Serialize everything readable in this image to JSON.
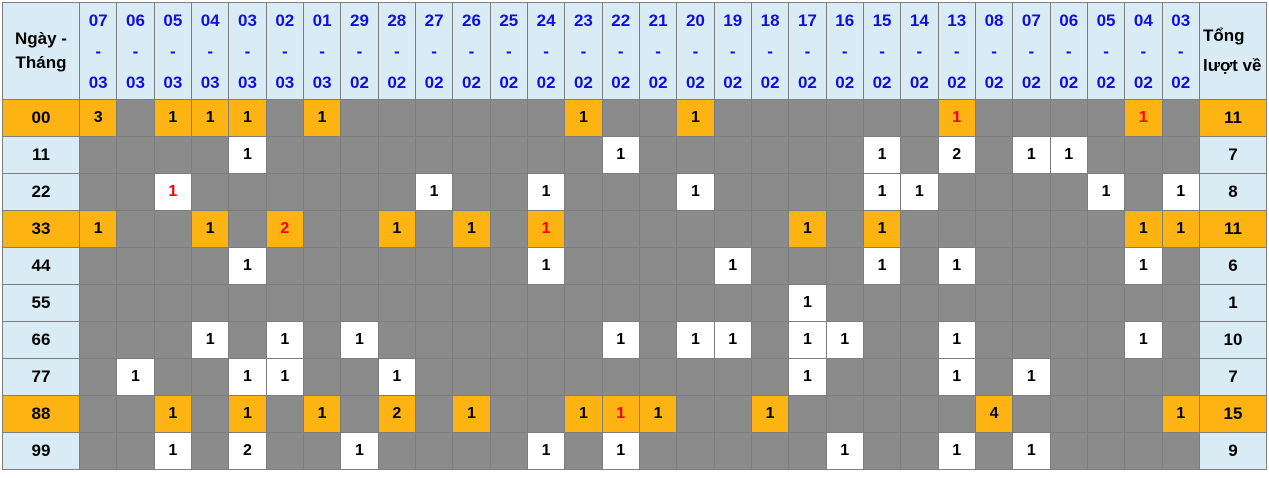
{
  "chart_data": {
    "type": "table",
    "corner_header": "Ngày - Tháng",
    "total_header": "Tổng lượt về",
    "columns": [
      "07-03",
      "06-03",
      "05-03",
      "04-03",
      "03-03",
      "02-03",
      "01-03",
      "29-02",
      "28-02",
      "27-02",
      "26-02",
      "25-02",
      "24-02",
      "23-02",
      "22-02",
      "21-02",
      "20-02",
      "19-02",
      "18-02",
      "17-02",
      "16-02",
      "15-02",
      "14-02",
      "13-02",
      "08-02",
      "07-02",
      "06-02",
      "05-02",
      "04-02",
      "03-02"
    ],
    "rows": [
      {
        "label": "00",
        "highlight": true,
        "total": 11,
        "cells": [
          {
            "v": 3
          },
          null,
          {
            "v": 1
          },
          {
            "v": 1
          },
          {
            "v": 1
          },
          null,
          {
            "v": 1
          },
          null,
          null,
          null,
          null,
          null,
          null,
          {
            "v": 1
          },
          null,
          null,
          {
            "v": 1
          },
          null,
          null,
          null,
          null,
          null,
          null,
          {
            "v": 1,
            "red": true
          },
          null,
          null,
          null,
          null,
          {
            "v": 1,
            "red": true
          },
          null
        ]
      },
      {
        "label": "11",
        "highlight": false,
        "total": 7,
        "cells": [
          null,
          null,
          null,
          null,
          {
            "v": 1
          },
          null,
          null,
          null,
          null,
          null,
          null,
          null,
          null,
          null,
          {
            "v": 1
          },
          null,
          null,
          null,
          null,
          null,
          null,
          {
            "v": 1
          },
          null,
          {
            "v": 2
          },
          null,
          {
            "v": 1
          },
          {
            "v": 1
          },
          null,
          null,
          null
        ]
      },
      {
        "label": "22",
        "highlight": false,
        "total": 8,
        "cells": [
          null,
          null,
          {
            "v": 1,
            "red": true
          },
          null,
          null,
          null,
          null,
          null,
          null,
          {
            "v": 1
          },
          null,
          null,
          {
            "v": 1
          },
          null,
          null,
          null,
          {
            "v": 1
          },
          null,
          null,
          null,
          null,
          {
            "v": 1
          },
          {
            "v": 1
          },
          null,
          null,
          null,
          null,
          {
            "v": 1
          },
          null,
          {
            "v": 1
          }
        ]
      },
      {
        "label": "33",
        "highlight": true,
        "total": 11,
        "cells": [
          {
            "v": 1
          },
          null,
          null,
          {
            "v": 1
          },
          null,
          {
            "v": 2,
            "red": true
          },
          null,
          null,
          {
            "v": 1
          },
          null,
          {
            "v": 1
          },
          null,
          {
            "v": 1,
            "red": true
          },
          null,
          null,
          null,
          null,
          null,
          null,
          {
            "v": 1
          },
          null,
          {
            "v": 1
          },
          null,
          null,
          null,
          null,
          null,
          null,
          {
            "v": 1
          },
          {
            "v": 1
          }
        ]
      },
      {
        "label": "44",
        "highlight": false,
        "total": 6,
        "cells": [
          null,
          null,
          null,
          null,
          {
            "v": 1
          },
          null,
          null,
          null,
          null,
          null,
          null,
          null,
          {
            "v": 1
          },
          null,
          null,
          null,
          null,
          {
            "v": 1
          },
          null,
          null,
          null,
          {
            "v": 1
          },
          null,
          {
            "v": 1
          },
          null,
          null,
          null,
          null,
          {
            "v": 1
          },
          null
        ]
      },
      {
        "label": "55",
        "highlight": false,
        "total": 1,
        "cells": [
          null,
          null,
          null,
          null,
          null,
          null,
          null,
          null,
          null,
          null,
          null,
          null,
          null,
          null,
          null,
          null,
          null,
          null,
          null,
          {
            "v": 1
          },
          null,
          null,
          null,
          null,
          null,
          null,
          null,
          null,
          null,
          null
        ]
      },
      {
        "label": "66",
        "highlight": false,
        "total": 10,
        "cells": [
          null,
          null,
          null,
          {
            "v": 1
          },
          null,
          {
            "v": 1
          },
          null,
          {
            "v": 1
          },
          null,
          null,
          null,
          null,
          null,
          null,
          {
            "v": 1
          },
          null,
          {
            "v": 1
          },
          {
            "v": 1
          },
          null,
          {
            "v": 1
          },
          {
            "v": 1
          },
          null,
          null,
          {
            "v": 1
          },
          null,
          null,
          null,
          null,
          {
            "v": 1
          },
          null
        ]
      },
      {
        "label": "77",
        "highlight": false,
        "total": 7,
        "cells": [
          null,
          {
            "v": 1
          },
          null,
          null,
          {
            "v": 1
          },
          {
            "v": 1
          },
          null,
          null,
          {
            "v": 1
          },
          null,
          null,
          null,
          null,
          null,
          null,
          null,
          null,
          null,
          null,
          {
            "v": 1
          },
          null,
          null,
          null,
          {
            "v": 1
          },
          null,
          {
            "v": 1
          },
          null,
          null,
          null,
          null
        ]
      },
      {
        "label": "88",
        "highlight": true,
        "total": 15,
        "cells": [
          null,
          null,
          {
            "v": 1
          },
          null,
          {
            "v": 1
          },
          null,
          {
            "v": 1
          },
          null,
          {
            "v": 2
          },
          null,
          {
            "v": 1
          },
          null,
          null,
          {
            "v": 1
          },
          {
            "v": 1,
            "red": true
          },
          {
            "v": 1
          },
          null,
          null,
          {
            "v": 1
          },
          null,
          null,
          null,
          null,
          null,
          {
            "v": 4
          },
          null,
          null,
          null,
          null,
          {
            "v": 1
          }
        ]
      },
      {
        "label": "99",
        "highlight": false,
        "total": 9,
        "cells": [
          null,
          null,
          {
            "v": 1
          },
          null,
          {
            "v": 2
          },
          null,
          null,
          {
            "v": 1
          },
          null,
          null,
          null,
          null,
          {
            "v": 1
          },
          null,
          {
            "v": 1
          },
          null,
          null,
          null,
          null,
          null,
          {
            "v": 1
          },
          null,
          null,
          {
            "v": 1
          },
          null,
          {
            "v": 1
          },
          null,
          null,
          null,
          null
        ]
      }
    ]
  },
  "colors": {
    "highlight": "#fdb413",
    "header_bg": "#d9ecf5",
    "empty_cell": "#8b8b8b",
    "grid_border": "#7d7d7d",
    "date_text": "#0f0fdf",
    "red_value": "#fe0000",
    "filled_cell": "#ffffff",
    "text": "#000000"
  }
}
